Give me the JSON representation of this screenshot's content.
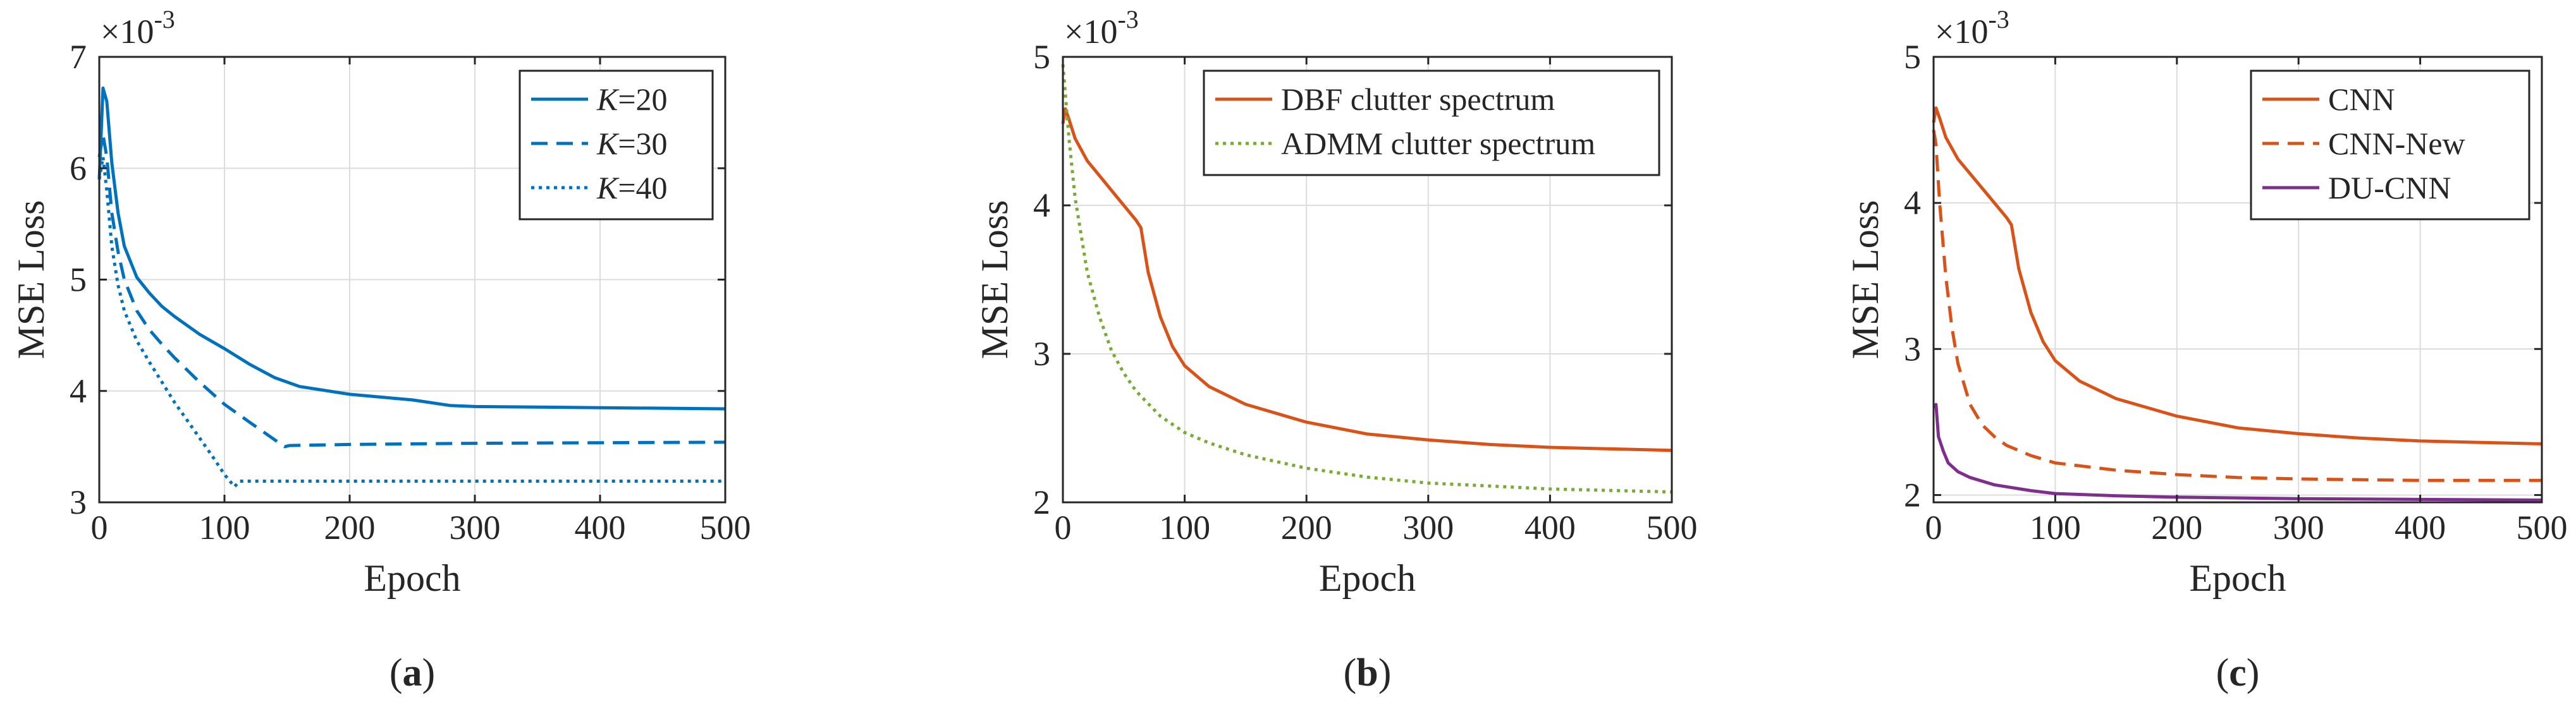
{
  "chart_data": [
    {
      "type": "line",
      "panel": "a",
      "caption": "(a)",
      "caption_letter": "a",
      "xlabel": "Epoch",
      "ylabel": "MSE Loss",
      "scale_label": "×10",
      "scale_exponent": "-3",
      "xlim": [
        0,
        500
      ],
      "ylim": [
        3,
        7
      ],
      "xticks": [
        0,
        100,
        200,
        300,
        400,
        500
      ],
      "yticks": [
        3,
        4,
        5,
        6,
        7
      ],
      "grid": true,
      "legend_position": "top-right",
      "series": [
        {
          "name": "K=20",
          "name_italic": "K",
          "name_rest": "=20",
          "color": "#0072BD",
          "style": "solid",
          "x": [
            0,
            3,
            6,
            10,
            15,
            20,
            30,
            40,
            50,
            60,
            80,
            100,
            120,
            140,
            160,
            200,
            250,
            280,
            300,
            400,
            500
          ],
          "y": [
            5.9,
            6.72,
            6.6,
            6.05,
            5.6,
            5.3,
            5.02,
            4.88,
            4.76,
            4.67,
            4.51,
            4.38,
            4.24,
            4.12,
            4.04,
            3.97,
            3.92,
            3.87,
            3.86,
            3.85,
            3.84
          ]
        },
        {
          "name": "K=30",
          "name_italic": "K",
          "name_rest": "=30",
          "color": "#0072BD",
          "style": "dashed",
          "x": [
            0,
            3,
            6,
            10,
            15,
            20,
            30,
            40,
            50,
            60,
            80,
            100,
            120,
            148,
            152,
            200,
            300,
            400,
            500
          ],
          "y": [
            6.1,
            6.3,
            6.1,
            5.6,
            5.25,
            5.0,
            4.72,
            4.55,
            4.42,
            4.3,
            4.08,
            3.88,
            3.72,
            3.5,
            3.51,
            3.52,
            3.53,
            3.535,
            3.54
          ]
        },
        {
          "name": "K=40",
          "name_italic": "K",
          "name_rest": "=40",
          "color": "#0072BD",
          "style": "dotted",
          "x": [
            0,
            3,
            6,
            10,
            15,
            20,
            30,
            40,
            50,
            60,
            70,
            80,
            90,
            100,
            108,
            112,
            150,
            200,
            300,
            400,
            500
          ],
          "y": [
            5.9,
            6.1,
            5.8,
            5.3,
            4.95,
            4.72,
            4.45,
            4.26,
            4.08,
            3.9,
            3.74,
            3.58,
            3.42,
            3.25,
            3.14,
            3.19,
            3.19,
            3.19,
            3.19,
            3.19,
            3.19
          ]
        }
      ]
    },
    {
      "type": "line",
      "panel": "b",
      "caption": "(b)",
      "caption_letter": "b",
      "xlabel": "Epoch",
      "ylabel": "MSE Loss",
      "scale_label": "×10",
      "scale_exponent": "-3",
      "xlim": [
        0,
        500
      ],
      "ylim": [
        2,
        5
      ],
      "xticks": [
        0,
        100,
        200,
        300,
        400,
        500
      ],
      "yticks": [
        2,
        3,
        4,
        5
      ],
      "grid": true,
      "legend_position": "top-right",
      "series": [
        {
          "name": "DBF clutter spectrum",
          "color": "#D95319",
          "style": "solid",
          "x": [
            0,
            2,
            5,
            10,
            20,
            30,
            40,
            50,
            60,
            64,
            70,
            80,
            90,
            100,
            120,
            150,
            200,
            250,
            300,
            350,
            400,
            450,
            500
          ],
          "y": [
            4.55,
            4.65,
            4.58,
            4.45,
            4.3,
            4.2,
            4.1,
            4.0,
            3.9,
            3.85,
            3.55,
            3.25,
            3.05,
            2.92,
            2.78,
            2.66,
            2.54,
            2.46,
            2.42,
            2.39,
            2.37,
            2.36,
            2.35
          ]
        },
        {
          "name": "ADMM clutter spectrum",
          "color": "#77AC30",
          "style": "dotted",
          "x": [
            0,
            2,
            5,
            10,
            20,
            30,
            40,
            50,
            60,
            80,
            100,
            120,
            150,
            200,
            250,
            300,
            350,
            400,
            450,
            500
          ],
          "y": [
            4.95,
            4.75,
            4.45,
            4.05,
            3.55,
            3.25,
            3.02,
            2.87,
            2.75,
            2.58,
            2.47,
            2.4,
            2.32,
            2.23,
            2.17,
            2.13,
            2.11,
            2.09,
            2.08,
            2.07
          ]
        }
      ]
    },
    {
      "type": "line",
      "panel": "c",
      "caption": "(c)",
      "caption_letter": "c",
      "xlabel": "Epoch",
      "ylabel": "MSE Loss",
      "scale_label": "×10",
      "scale_exponent": "-3",
      "xlim": [
        0,
        500
      ],
      "ylim": [
        1.95,
        5
      ],
      "xticks": [
        0,
        100,
        200,
        300,
        400,
        500
      ],
      "yticks": [
        2,
        3,
        4,
        5
      ],
      "grid": true,
      "legend_position": "top-right",
      "series": [
        {
          "name": "CNN",
          "color": "#D95319",
          "style": "solid",
          "x": [
            0,
            2,
            5,
            10,
            20,
            30,
            40,
            50,
            60,
            64,
            70,
            80,
            90,
            100,
            120,
            150,
            200,
            250,
            300,
            350,
            400,
            450,
            500
          ],
          "y": [
            4.55,
            4.65,
            4.58,
            4.45,
            4.3,
            4.2,
            4.1,
            4.0,
            3.9,
            3.85,
            3.55,
            3.25,
            3.05,
            2.92,
            2.78,
            2.66,
            2.54,
            2.46,
            2.42,
            2.39,
            2.37,
            2.36,
            2.35
          ]
        },
        {
          "name": "CNN-New",
          "color": "#D95319",
          "style": "dashed",
          "x": [
            0,
            2,
            5,
            10,
            15,
            20,
            30,
            40,
            50,
            60,
            80,
            100,
            150,
            200,
            250,
            300,
            400,
            500
          ],
          "y": [
            4.5,
            4.4,
            4.0,
            3.5,
            3.15,
            2.9,
            2.62,
            2.48,
            2.4,
            2.34,
            2.27,
            2.22,
            2.17,
            2.14,
            2.12,
            2.11,
            2.1,
            2.1
          ]
        },
        {
          "name": "DU-CNN",
          "color": "#7E2F8E",
          "style": "solid",
          "x": [
            0,
            2,
            4,
            8,
            12,
            20,
            30,
            50,
            80,
            100,
            150,
            200,
            300,
            400,
            500
          ],
          "y": [
            2.6,
            2.62,
            2.4,
            2.3,
            2.22,
            2.16,
            2.12,
            2.07,
            2.03,
            2.01,
            1.995,
            1.985,
            1.975,
            1.97,
            1.965
          ]
        }
      ]
    }
  ]
}
